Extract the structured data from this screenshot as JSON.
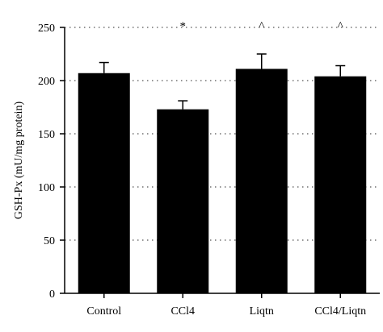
{
  "chart_data": {
    "type": "bar",
    "categories": [
      "Control",
      "CCl4",
      "Liqtn",
      "CCl4/Liqtn"
    ],
    "values": [
      207,
      173,
      211,
      204
    ],
    "errors": [
      10,
      8,
      14,
      10
    ],
    "markers": [
      "",
      "*",
      "^",
      "^"
    ],
    "ylabel": "GSH-Px (mU/mg protein)",
    "xlabel": "",
    "ylim": [
      0,
      250
    ],
    "yticks": [
      0,
      50,
      100,
      150,
      200,
      250
    ],
    "grid": "horizontal dotted",
    "bar_color": "#000000"
  }
}
